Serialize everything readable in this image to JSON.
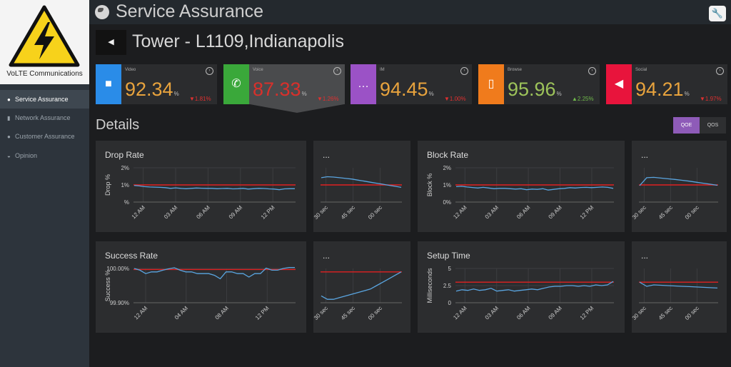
{
  "sidebar": {
    "brand": "VoLTE Communications",
    "items": [
      {
        "label": "Service Assurance",
        "icon": "globe-icon",
        "active": true
      },
      {
        "label": "Network Assurance",
        "icon": "signal-bars-icon",
        "active": false
      },
      {
        "label": "Customer Assurance",
        "icon": "user-icon",
        "active": false
      },
      {
        "label": "Opinion",
        "icon": "chat-icon",
        "active": false
      }
    ]
  },
  "header": {
    "title": "Service Assurance",
    "tower": "Tower - L1109,Indianapolis"
  },
  "kpis": [
    {
      "label": "Video",
      "value": "92.34",
      "unit": "%",
      "change": "1.81%",
      "direction": "down",
      "icon": "video-camera-icon",
      "color": "#2a8ce8",
      "value_color": "#e8a33d"
    },
    {
      "label": "Voice",
      "value": "87.33",
      "unit": "%",
      "change": "1.26%",
      "direction": "down",
      "icon": "phone-icon",
      "color": "#3aa83a",
      "value_color": "#d9302b"
    },
    {
      "label": "IM",
      "value": "94.45",
      "unit": "%",
      "change": "1.00%",
      "direction": "down",
      "icon": "speech-bubble-icon",
      "color": "#9b52c6",
      "value_color": "#e8a33d"
    },
    {
      "label": "Browse",
      "value": "95.96",
      "unit": "%",
      "change": "2.25%",
      "direction": "up",
      "icon": "tablet-icon",
      "color": "#f07b1c",
      "value_color": "#9dc35a"
    },
    {
      "label": "Social",
      "value": "94.21",
      "unit": "%",
      "change": "1.97%",
      "direction": "down",
      "icon": "megaphone-icon",
      "color": "#e8143c",
      "value_color": "#e8a33d"
    }
  ],
  "details": {
    "title": "Details",
    "toggle": [
      "QOE",
      "QOS"
    ],
    "active_toggle": "QOE"
  },
  "colors": {
    "line": "#5aa5e0",
    "threshold": "#e02020"
  },
  "chart_data": [
    {
      "type": "line",
      "title": "Drop Rate",
      "ylabel": "Drop %",
      "yticks": [
        "2%",
        "1%",
        "%"
      ],
      "ylim": [
        0,
        2
      ],
      "xticks": [
        "12 AM",
        "03 AM",
        "06 AM",
        "09 AM",
        "12 PM"
      ],
      "threshold": 1,
      "values": [
        0.97,
        0.94,
        0.9,
        0.88,
        0.87,
        0.86,
        0.84,
        0.8,
        0.83,
        0.8,
        0.78,
        0.8,
        0.82,
        0.81,
        0.8,
        0.8,
        0.78,
        0.79,
        0.8,
        0.77,
        0.78,
        0.8,
        0.76,
        0.78,
        0.8,
        0.79,
        0.77,
        0.76,
        0.72,
        0.77,
        0.78,
        0.78
      ]
    },
    {
      "type": "line",
      "title": "...",
      "ylim": [
        0,
        2
      ],
      "xticks": [
        "30 sec",
        "45 sec",
        "00 sec"
      ],
      "threshold": 1,
      "values": [
        1.42,
        1.48,
        1.46,
        1.42,
        1.38,
        1.34,
        1.28,
        1.22,
        1.16,
        1.1,
        1.04,
        0.98,
        0.92,
        0.86
      ]
    },
    {
      "type": "line",
      "title": "Block Rate",
      "ylabel": "Block %",
      "yticks": [
        "2%",
        "1%",
        "0%"
      ],
      "ylim": [
        0,
        2
      ],
      "xticks": [
        "12 AM",
        "03 AM",
        "06 AM",
        "09 AM",
        "12 PM"
      ],
      "threshold": 1,
      "values": [
        0.9,
        0.92,
        0.88,
        0.85,
        0.82,
        0.86,
        0.82,
        0.78,
        0.8,
        0.8,
        0.78,
        0.76,
        0.78,
        0.72,
        0.76,
        0.74,
        0.78,
        0.7,
        0.74,
        0.78,
        0.8,
        0.84,
        0.82,
        0.85,
        0.86,
        0.84,
        0.86,
        0.88,
        0.86,
        0.8
      ]
    },
    {
      "type": "line",
      "title": "...",
      "ylim": [
        0,
        2
      ],
      "xticks": [
        "30 sec",
        "45 sec",
        "00 sec"
      ],
      "threshold": 1,
      "values": [
        0.96,
        1.42,
        1.44,
        1.4,
        1.36,
        1.32,
        1.27,
        1.22,
        1.16,
        1.1,
        1.04,
        0.98
      ]
    },
    {
      "type": "line",
      "title": "Success Rate",
      "ylabel": "Success %",
      "yticks": [
        "100.00%",
        "99.90%"
      ],
      "ylim": [
        99.9,
        100
      ],
      "xticks": [
        "12 AM",
        "04 AM",
        "08 AM",
        "12 PM"
      ],
      "threshold": 99.997,
      "values": [
        100.0,
        99.995,
        99.985,
        99.99,
        99.99,
        99.995,
        99.999,
        100.002,
        99.995,
        99.99,
        99.99,
        99.985,
        99.985,
        99.985,
        99.98,
        99.97,
        99.99,
        99.99,
        99.985,
        99.985,
        99.975,
        99.985,
        99.985,
        100.001,
        99.995,
        99.995,
        100.0,
        100.003,
        100.003
      ]
    },
    {
      "type": "line",
      "title": "...",
      "ylim": [
        99.9,
        100
      ],
      "xticks": [
        "30 sec",
        "45 sec",
        "00 sec"
      ],
      "threshold": 99.99,
      "values": [
        99.92,
        99.91,
        99.91,
        99.915,
        99.92,
        99.925,
        99.93,
        99.935,
        99.94,
        99.95,
        99.96,
        99.97,
        99.98,
        99.99
      ]
    },
    {
      "type": "line",
      "title": "Setup Time",
      "ylabel": "Milliseconds",
      "yticks": [
        "5",
        "2.5",
        "0"
      ],
      "ylim": [
        0,
        5
      ],
      "xticks": [
        "12 AM",
        "03 AM",
        "06 AM",
        "09 AM",
        "12 PM"
      ],
      "threshold": 3,
      "values": [
        1.7,
        1.9,
        1.8,
        2.0,
        1.8,
        1.9,
        2.1,
        1.7,
        1.8,
        1.9,
        1.7,
        1.8,
        1.9,
        2.0,
        1.9,
        2.1,
        2.3,
        2.4,
        2.4,
        2.5,
        2.5,
        2.4,
        2.5,
        2.4,
        2.6,
        2.5,
        2.6,
        3.1
      ]
    },
    {
      "type": "line",
      "title": "...",
      "ylim": [
        0,
        5
      ],
      "xticks": [
        "30 sec",
        "45 sec",
        "00 sec"
      ],
      "threshold": 3,
      "values": [
        3.0,
        2.4,
        2.6,
        2.55,
        2.5,
        2.45,
        2.4,
        2.35,
        2.3,
        2.25,
        2.2,
        2.15
      ]
    }
  ]
}
